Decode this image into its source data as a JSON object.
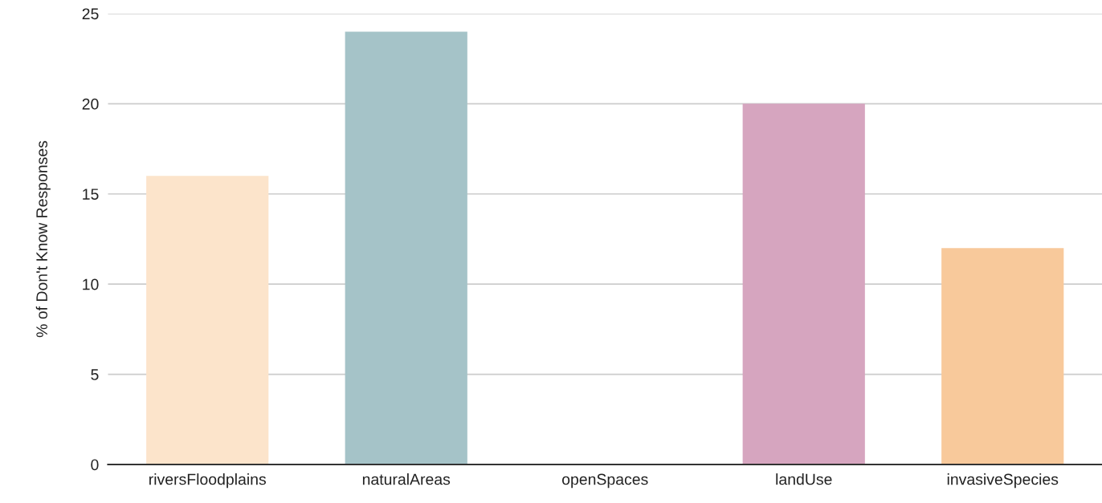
{
  "chart_data": {
    "type": "bar",
    "categories": [
      "riversFloodplains",
      "naturalAreas",
      "openSpaces",
      "landUse",
      "invasiveSpecies"
    ],
    "values": [
      16,
      24,
      0,
      20,
      12
    ],
    "colors": [
      "#fce4cb",
      "#a5c3c8",
      null,
      "#d6a5bf",
      "#f8c99b"
    ],
    "ylabel": "% of Don't Know Responses",
    "ylim": [
      0,
      25
    ],
    "yticks": [
      0,
      5,
      10,
      15,
      20,
      25
    ],
    "grid": "y"
  }
}
